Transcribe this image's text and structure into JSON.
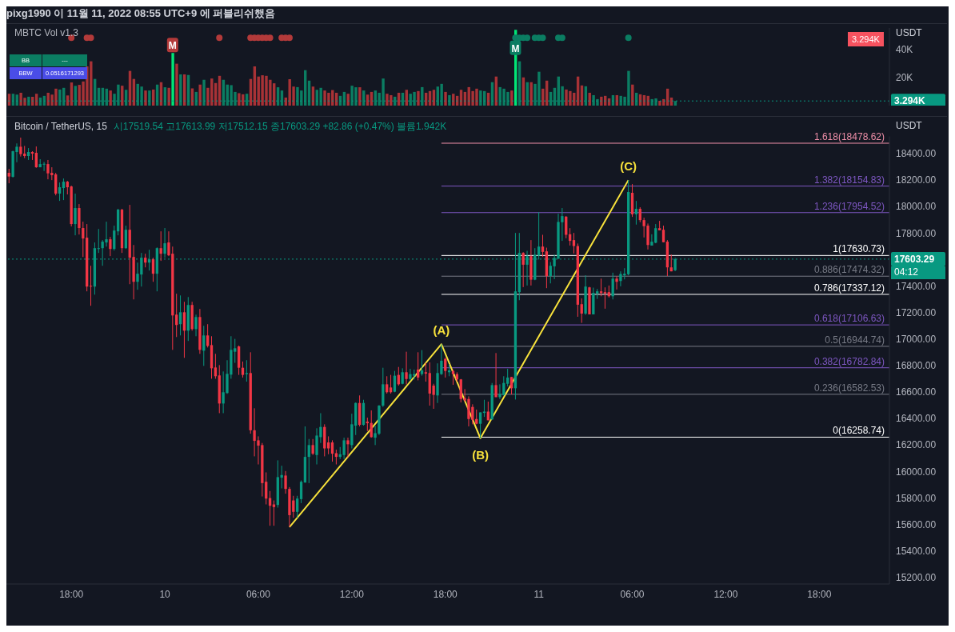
{
  "chart_data": [
    {
      "type": "bar",
      "title": "MBTC Vol v1.3",
      "ylabel": "USDT",
      "annotations": [
        "pixg1990 이 11월 11, 2022 08:55 UTC+9 에 퍼블리쉬했음",
        "BB",
        "---",
        "BBW",
        "0.0516171293",
        "3.294K",
        {
          "text": "M",
          "x": "2022-11-10T00:30",
          "y": 43
        },
        {
          "text": "M",
          "x": "2022-11-10T22:30",
          "y": 41
        }
      ],
      "x": [
        "2022-11-09T14:00",
        "2022-11-09T14:15",
        "2022-11-09T14:30",
        "2022-11-09T14:45",
        "2022-11-09T15:00",
        "2022-11-09T15:15",
        "2022-11-09T15:30",
        "2022-11-09T15:45",
        "2022-11-09T16:00",
        "2022-11-09T16:15",
        "2022-11-09T16:30",
        "2022-11-09T16:45",
        "2022-11-09T17:00",
        "2022-11-09T17:15",
        "2022-11-09T17:30",
        "2022-11-09T17:45",
        "2022-11-09T18:00",
        "2022-11-09T18:15",
        "2022-11-09T18:30",
        "2022-11-09T18:45",
        "2022-11-09T19:00",
        "2022-11-09T19:15",
        "2022-11-09T19:30",
        "2022-11-09T19:45",
        "2022-11-09T20:00",
        "2022-11-09T20:15",
        "2022-11-09T20:30",
        "2022-11-09T20:45",
        "2022-11-09T21:00",
        "2022-11-09T21:15",
        "2022-11-09T21:30",
        "2022-11-09T21:45",
        "2022-11-09T22:00",
        "2022-11-09T22:15",
        "2022-11-09T22:30",
        "2022-11-09T22:45",
        "2022-11-09T23:00",
        "2022-11-09T23:15",
        "2022-11-09T23:30",
        "2022-11-09T23:45",
        "2022-11-10T00:00",
        "2022-11-10T00:15",
        "2022-11-10T00:30",
        "2022-11-10T00:45",
        "2022-11-10T01:00",
        "2022-11-10T01:15",
        "2022-11-10T01:30",
        "2022-11-10T01:45",
        "2022-11-10T02:00",
        "2022-11-10T02:15",
        "2022-11-10T02:30",
        "2022-11-10T02:45",
        "2022-11-10T03:00",
        "2022-11-10T03:15",
        "2022-11-10T03:30",
        "2022-11-10T03:45",
        "2022-11-10T04:00",
        "2022-11-10T04:15",
        "2022-11-10T04:30",
        "2022-11-10T04:45",
        "2022-11-10T05:00",
        "2022-11-10T05:15",
        "2022-11-10T05:30",
        "2022-11-10T05:45",
        "2022-11-10T06:00",
        "2022-11-10T06:15",
        "2022-11-10T06:30",
        "2022-11-10T06:45",
        "2022-11-10T07:00",
        "2022-11-10T07:15",
        "2022-11-10T07:30",
        "2022-11-10T07:45",
        "2022-11-10T08:00",
        "2022-11-10T08:15",
        "2022-11-10T08:30",
        "2022-11-10T08:45",
        "2022-11-10T09:00",
        "2022-11-10T09:15",
        "2022-11-10T09:30",
        "2022-11-10T09:45",
        "2022-11-10T10:00",
        "2022-11-10T10:15",
        "2022-11-10T10:30",
        "2022-11-10T10:45",
        "2022-11-10T11:00",
        "2022-11-10T11:15",
        "2022-11-10T11:30",
        "2022-11-10T11:45",
        "2022-11-10T12:00",
        "2022-11-10T12:15",
        "2022-11-10T12:30",
        "2022-11-10T12:45",
        "2022-11-10T13:00",
        "2022-11-10T13:15",
        "2022-11-10T13:30",
        "2022-11-10T13:45",
        "2022-11-10T14:00",
        "2022-11-10T14:15",
        "2022-11-10T14:30",
        "2022-11-10T14:45",
        "2022-11-10T15:00",
        "2022-11-10T15:15",
        "2022-11-10T15:30",
        "2022-11-10T15:45",
        "2022-11-10T16:00",
        "2022-11-10T16:15",
        "2022-11-10T16:30",
        "2022-11-10T16:45",
        "2022-11-10T17:00",
        "2022-11-10T17:15",
        "2022-11-10T17:30",
        "2022-11-10T17:45",
        "2022-11-10T18:00",
        "2022-11-10T18:15",
        "2022-11-10T18:30",
        "2022-11-10T18:45",
        "2022-11-10T19:00",
        "2022-11-10T19:15",
        "2022-11-10T19:30",
        "2022-11-10T19:45",
        "2022-11-10T20:00",
        "2022-11-10T20:15",
        "2022-11-10T20:30",
        "2022-11-10T20:45",
        "2022-11-10T21:00",
        "2022-11-10T21:15",
        "2022-11-10T21:30",
        "2022-11-10T21:45",
        "2022-11-10T22:00",
        "2022-11-10T22:15",
        "2022-11-10T22:30",
        "2022-11-10T22:45",
        "2022-11-10T23:00",
        "2022-11-10T23:15",
        "2022-11-10T23:30",
        "2022-11-10T23:45",
        "2022-11-11T00:00",
        "2022-11-11T00:15",
        "2022-11-11T00:30",
        "2022-11-11T00:45",
        "2022-11-11T01:00",
        "2022-11-11T01:15",
        "2022-11-11T01:30",
        "2022-11-11T01:45",
        "2022-11-11T02:00",
        "2022-11-11T02:15",
        "2022-11-11T02:30",
        "2022-11-11T02:45",
        "2022-11-11T03:00",
        "2022-11-11T03:15",
        "2022-11-11T03:30",
        "2022-11-11T03:45",
        "2022-11-11T04:00",
        "2022-11-11T04:15",
        "2022-11-11T04:30",
        "2022-11-11T04:45",
        "2022-11-11T05:00",
        "2022-11-11T05:15",
        "2022-11-11T05:30",
        "2022-11-11T05:45",
        "2022-11-11T06:00",
        "2022-11-11T06:15",
        "2022-11-11T06:30",
        "2022-11-11T06:45",
        "2022-11-11T07:00",
        "2022-11-11T07:15",
        "2022-11-11T07:30",
        "2022-11-11T07:45",
        "2022-11-11T08:00",
        "2022-11-11T08:15",
        "2022-11-11T08:30",
        "2022-11-11T08:45"
      ],
      "values": [
        8.4,
        8.4,
        7.8,
        9.1,
        5.5,
        6.3,
        6.3,
        8.4,
        5.7,
        6.9,
        9.1,
        7.8,
        12.0,
        11.4,
        12.6,
        7.2,
        16.4,
        14,
        14.7,
        17.1,
        27.8,
        31.4,
        18.9,
        12.6,
        12.6,
        12.0,
        10.7,
        8.4,
        14.9,
        14.1,
        11.2,
        24.6,
        18.9,
        15.4,
        13.5,
        10.7,
        10.7,
        11.4,
        14.9,
        16.6,
        13.0,
        12.6,
        37.3,
        29.7,
        22.1,
        22.1,
        21.7,
        12.2,
        9.7,
        14.9,
        18.3,
        12.6,
        19.2,
        16.0,
        21.1,
        18.3,
        14.9,
        14.5,
        9.7,
        8.8,
        8.0,
        8.4,
        18.9,
        27.8,
        20.6,
        21.5,
        21.1,
        18.3,
        15.8,
        13.0,
        10.7,
        5.7,
        18.7,
        13.5,
        13.1,
        10.7,
        25.1,
        17.7,
        13.5,
        11.2,
        12.6,
        10.7,
        9.1,
        11.0,
        9.1,
        6.9,
        9.7,
        8.4,
        14.1,
        13.0,
        13.0,
        10.7,
        7.8,
        9.7,
        10.7,
        9.1,
        19.2,
        8.4,
        7.4,
        6.3,
        9.1,
        9.1,
        11.2,
        8.4,
        9.7,
        10.3,
        13.1,
        9.1,
        10.3,
        11.2,
        13.5,
        15.4,
        9.7,
        7.4,
        8.4,
        6.9,
        11.2,
        9.7,
        13.1,
        10.3,
        12.0,
        10.7,
        10.3,
        9.1,
        16.6,
        20.6,
        13.1,
        12.0,
        9.7,
        10.7,
        53.7,
        31.4,
        20.0,
        16.6,
        16.6,
        15.4,
        24.0,
        12.0,
        17.7,
        9.7,
        12.6,
        20.6,
        13.7,
        11.4,
        10.3,
        9.1,
        20.6,
        14.3,
        13.7,
        9.1,
        7.4,
        4.6,
        6.3,
        6.9,
        5.1,
        7.4,
        7.4,
        6.9,
        6.3,
        24.6,
        14.9,
        9.1,
        8.0,
        7.4,
        6.9,
        4.6,
        5.1,
        3.4,
        4.6,
        12.0,
        5.7,
        3.294
      ],
      "colors": [
        "#a83236",
        "#0b7d62",
        "#0b7d62",
        "#a83236",
        "#a83236",
        "#0b7d62",
        "#a83236",
        "#a83236",
        "#0b7d62",
        "#0b7d62",
        "#a83236",
        "#a83236",
        "#a83236",
        "#0b7d62",
        "#0b7d62",
        "#a83236",
        "#a83236",
        "#0b7d62",
        "#a83236",
        "#a83236",
        "#a83236",
        "#a83236",
        "#0b7d62",
        "#0b7d62",
        "#0b7d62",
        "#0b7d62",
        "#a83236",
        "#0b7d62",
        "#0b7d62",
        "#a83236",
        "#0b7d62",
        "#a83236",
        "#a83236",
        "#0b7d62",
        "#0b7d62",
        "#a83236",
        "#0b7d62",
        "#a83236",
        "#0b7d62",
        "#a83236",
        "#0b7d62",
        "#a83236",
        "#00e676",
        "#a83236",
        "#0b7d62",
        "#a83236",
        "#0b7d62",
        "#a83236",
        "#0b7d62",
        "#a83236",
        "#0b7d62",
        "#a83236",
        "#a83236",
        "#a83236",
        "#a83236",
        "#0b7d62",
        "#0b7d62",
        "#0b7d62",
        "#0b7d62",
        "#a83236",
        "#a83236",
        "#0b7d62",
        "#a83236",
        "#a83236",
        "#a83236",
        "#a83236",
        "#a83236",
        "#a83236",
        "#a83236",
        "#0b7d62",
        "#0b7d62",
        "#a83236",
        "#a83236",
        "#a83236",
        "#0b7d62",
        "#0b7d62",
        "#0b7d62",
        "#0b7d62",
        "#a83236",
        "#0b7d62",
        "#0b7d62",
        "#a83236",
        "#a83236",
        "#a83236",
        "#a83236",
        "#0b7d62",
        "#0b7d62",
        "#a83236",
        "#0b7d62",
        "#0b7d62",
        "#a83236",
        "#0b7d62",
        "#a83236",
        "#a83236",
        "#0b7d62",
        "#0b7d62",
        "#0b7d62",
        "#a83236",
        "#a83236",
        "#0b7d62",
        "#a83236",
        "#0b7d62",
        "#a83236",
        "#0b7d62",
        "#0b7d62",
        "#a83236",
        "#0b7d62",
        "#a83236",
        "#a83236",
        "#a83236",
        "#0b7d62",
        "#0b7d62",
        "#a83236",
        "#0b7d62",
        "#a83236",
        "#a83236",
        "#a83236",
        "#a83236",
        "#a83236",
        "#a83236",
        "#a83236",
        "#0b7d62",
        "#0b7d62",
        "#a83236",
        "#0b7d62",
        "#a83236",
        "#0b7d62",
        "#0b7d62",
        "#0b7d62",
        "#a83236",
        "#00e676",
        "#0b7d62",
        "#a83236",
        "#0b7d62",
        "#a83236",
        "#0b7d62",
        "#0b7d62",
        "#a83236",
        "#a83236",
        "#0b7d62",
        "#0b7d62",
        "#0b7d62",
        "#0b7d62",
        "#a83236",
        "#a83236",
        "#a83236",
        "#a83236",
        "#a83236",
        "#0b7d62",
        "#a83236",
        "#0b7d62",
        "#0b7d62",
        "#a83236",
        "#a83236",
        "#a83236",
        "#0b7d62",
        "#a83236",
        "#0b7d62",
        "#0b7d62",
        "#0b7d62",
        "#a83236",
        "#0b7d62",
        "#a83236",
        "#a83236",
        "#a83236",
        "#0b7d62",
        "#0b7d62",
        "#a83236",
        "#a83236",
        "#a83236",
        "#a83236",
        "#0b7d62"
      ],
      "series": [
        {
          "type": "scatter",
          "color": "#b33a3a",
          "x": [
            "2022-11-09T18:00",
            "2022-11-09T19:00",
            "2022-11-09T19:15",
            "2022-11-10T03:30",
            "2022-11-10T05:30",
            "2022-11-10T05:45",
            "2022-11-10T06:00",
            "2022-11-10T06:15",
            "2022-11-10T06:30",
            "2022-11-10T06:45",
            "2022-11-10T07:30",
            "2022-11-10T07:45",
            "2022-11-10T08:00"
          ],
          "values": [
            48,
            48,
            48,
            48,
            48,
            48,
            48,
            48,
            48,
            48,
            48,
            48,
            48
          ]
        },
        {
          "type": "scatter",
          "color": "#0b7d62",
          "x": [
            "2022-11-10T22:30",
            "2022-11-10T22:45",
            "2022-11-10T23:00",
            "2022-11-10T23:15",
            "2022-11-10T23:45",
            "2022-11-11T00:00",
            "2022-11-11T00:15",
            "2022-11-11T01:15",
            "2022-11-11T01:30",
            "2022-11-11T05:45"
          ],
          "values": [
            48,
            48,
            48,
            48,
            48,
            48,
            48,
            48,
            48,
            48
          ]
        }
      ],
      "xlim": [
        "2022-11-09T13:50",
        "2022-11-11T22:30"
      ],
      "ylim": [
        0,
        55
      ],
      "yticks": [
        {
          "value": 20,
          "label": "20K"
        },
        {
          "value": 40,
          "label": "40K"
        }
      ],
      "ref_lines": [
        {
          "axis": "y",
          "value": 3.294,
          "label": "3.294K",
          "color": "#089981",
          "line_style": "dotted"
        }
      ],
      "tick_labels": "y"
    },
    {
      "type": "candlestick",
      "title": "Bitcoin / TetherUS, 15",
      "subtitle": "시17519.54 고17613.99 저17512.15 종17603.29 +82.86 (+0.47%) 볼륨1.942K",
      "ylabel": "USDT",
      "annotations": [
        {
          "text": "(A)",
          "x": "2022-11-10T17:45",
          "y": 16961
        },
        {
          "text": "(B)",
          "x": "2022-11-10T20:15",
          "y": 16251
        },
        {
          "text": "(C)",
          "x": "2022-11-11T05:45",
          "y": 18200
        },
        "04:12"
      ],
      "x": [
        "2022-11-09T14:00",
        "2022-11-09T14:15",
        "2022-11-09T14:30",
        "2022-11-09T14:45",
        "2022-11-09T15:00",
        "2022-11-09T15:15",
        "2022-11-09T15:30",
        "2022-11-09T15:45",
        "2022-11-09T16:00",
        "2022-11-09T16:15",
        "2022-11-09T16:30",
        "2022-11-09T16:45",
        "2022-11-09T17:00",
        "2022-11-09T17:15",
        "2022-11-09T17:30",
        "2022-11-09T17:45",
        "2022-11-09T18:00",
        "2022-11-09T18:15",
        "2022-11-09T18:30",
        "2022-11-09T18:45",
        "2022-11-09T19:00",
        "2022-11-09T19:15",
        "2022-11-09T19:30",
        "2022-11-09T19:45",
        "2022-11-09T20:00",
        "2022-11-09T20:15",
        "2022-11-09T20:30",
        "2022-11-09T20:45",
        "2022-11-09T21:00",
        "2022-11-09T21:15",
        "2022-11-09T21:30",
        "2022-11-09T21:45",
        "2022-11-09T22:00",
        "2022-11-09T22:15",
        "2022-11-09T22:30",
        "2022-11-09T22:45",
        "2022-11-09T23:00",
        "2022-11-09T23:15",
        "2022-11-09T23:30",
        "2022-11-09T23:45",
        "2022-11-10T00:00",
        "2022-11-10T00:15",
        "2022-11-10T00:30",
        "2022-11-10T00:45",
        "2022-11-10T01:00",
        "2022-11-10T01:15",
        "2022-11-10T01:30",
        "2022-11-10T01:45",
        "2022-11-10T02:00",
        "2022-11-10T02:15",
        "2022-11-10T02:30",
        "2022-11-10T02:45",
        "2022-11-10T03:00",
        "2022-11-10T03:15",
        "2022-11-10T03:30",
        "2022-11-10T03:45",
        "2022-11-10T04:00",
        "2022-11-10T04:15",
        "2022-11-10T04:30",
        "2022-11-10T04:45",
        "2022-11-10T05:00",
        "2022-11-10T05:15",
        "2022-11-10T05:30",
        "2022-11-10T05:45",
        "2022-11-10T06:00",
        "2022-11-10T06:15",
        "2022-11-10T06:30",
        "2022-11-10T06:45",
        "2022-11-10T07:00",
        "2022-11-10T07:15",
        "2022-11-10T07:30",
        "2022-11-10T07:45",
        "2022-11-10T08:00",
        "2022-11-10T08:15",
        "2022-11-10T08:30",
        "2022-11-10T08:45",
        "2022-11-10T09:00",
        "2022-11-10T09:15",
        "2022-11-10T09:30",
        "2022-11-10T09:45",
        "2022-11-10T10:00",
        "2022-11-10T10:15",
        "2022-11-10T10:30",
        "2022-11-10T10:45",
        "2022-11-10T11:00",
        "2022-11-10T11:15",
        "2022-11-10T11:30",
        "2022-11-10T11:45",
        "2022-11-10T12:00",
        "2022-11-10T12:15",
        "2022-11-10T12:30",
        "2022-11-10T12:45",
        "2022-11-10T13:00",
        "2022-11-10T13:15",
        "2022-11-10T13:30",
        "2022-11-10T13:45",
        "2022-11-10T14:00",
        "2022-11-10T14:15",
        "2022-11-10T14:30",
        "2022-11-10T14:45",
        "2022-11-10T15:00",
        "2022-11-10T15:15",
        "2022-11-10T15:30",
        "2022-11-10T15:45",
        "2022-11-10T16:00",
        "2022-11-10T16:15",
        "2022-11-10T16:30",
        "2022-11-10T16:45",
        "2022-11-10T17:00",
        "2022-11-10T17:15",
        "2022-11-10T17:30",
        "2022-11-10T17:45",
        "2022-11-10T18:00",
        "2022-11-10T18:15",
        "2022-11-10T18:30",
        "2022-11-10T18:45",
        "2022-11-10T19:00",
        "2022-11-10T19:15",
        "2022-11-10T19:30",
        "2022-11-10T19:45",
        "2022-11-10T20:00",
        "2022-11-10T20:15",
        "2022-11-10T20:30",
        "2022-11-10T20:45",
        "2022-11-10T21:00",
        "2022-11-10T21:15",
        "2022-11-10T21:30",
        "2022-11-10T21:45",
        "2022-11-10T22:00",
        "2022-11-10T22:15",
        "2022-11-10T22:30",
        "2022-11-10T22:45",
        "2022-11-10T23:00",
        "2022-11-10T23:15",
        "2022-11-10T23:30",
        "2022-11-10T23:45",
        "2022-11-11T00:00",
        "2022-11-11T00:15",
        "2022-11-11T00:30",
        "2022-11-11T00:45",
        "2022-11-11T01:00",
        "2022-11-11T01:15",
        "2022-11-11T01:30",
        "2022-11-11T01:45",
        "2022-11-11T02:00",
        "2022-11-11T02:15",
        "2022-11-11T02:30",
        "2022-11-11T02:45",
        "2022-11-11T03:00",
        "2022-11-11T03:15",
        "2022-11-11T03:30",
        "2022-11-11T03:45",
        "2022-11-11T04:00",
        "2022-11-11T04:15",
        "2022-11-11T04:30",
        "2022-11-11T04:45",
        "2022-11-11T05:00",
        "2022-11-11T05:15",
        "2022-11-11T05:30",
        "2022-11-11T05:45",
        "2022-11-11T06:00",
        "2022-11-11T06:15",
        "2022-11-11T06:30",
        "2022-11-11T06:45",
        "2022-11-11T07:00",
        "2022-11-11T07:15",
        "2022-11-11T07:30",
        "2022-11-11T07:45",
        "2022-11-11T08:00",
        "2022-11-11T08:15",
        "2022-11-11T08:30",
        "2022-11-11T08:45"
      ],
      "ohlc": [
        [
          18255,
          18285,
          18176,
          18227
        ],
        [
          18225,
          18422,
          18219,
          18418
        ],
        [
          18412,
          18477,
          18335,
          18452
        ],
        [
          18452,
          18521,
          18378,
          18396
        ],
        [
          18400,
          18458,
          18366,
          18382
        ],
        [
          18382,
          18442,
          18352,
          18412
        ],
        [
          18412,
          18418,
          18352,
          18400
        ],
        [
          18406,
          18454,
          18293,
          18297
        ],
        [
          18297,
          18358,
          18297,
          18321
        ],
        [
          18317,
          18337,
          18269,
          18323
        ],
        [
          18321,
          18352,
          18206,
          18251
        ],
        [
          18255,
          18297,
          18200,
          18237
        ],
        [
          18243,
          18255,
          18085,
          18098
        ],
        [
          18098,
          18182,
          18043,
          18146
        ],
        [
          18140,
          18212,
          18049,
          18188
        ],
        [
          18188,
          18194,
          18092,
          18146
        ],
        [
          18152,
          18158,
          17850,
          17868
        ],
        [
          17868,
          18098,
          17783,
          17989
        ],
        [
          17989,
          18019,
          17789,
          17838
        ],
        [
          17838,
          17886,
          17620,
          17759
        ],
        [
          17765,
          17868,
          17360,
          17396
        ],
        [
          17402,
          17553,
          17251,
          17398
        ],
        [
          17396,
          17729,
          17335,
          17686
        ],
        [
          17680,
          17831,
          17650,
          17686
        ],
        [
          17686,
          17747,
          17553,
          17735
        ],
        [
          17729,
          17886,
          17698,
          17753
        ],
        [
          17753,
          17771,
          17626,
          17680
        ],
        [
          17680,
          17856,
          17668,
          17819
        ],
        [
          17813,
          17983,
          17783,
          17977
        ],
        [
          17977,
          17983,
          17650,
          17686
        ],
        [
          17686,
          17856,
          17680,
          17825
        ],
        [
          17825,
          18013,
          17414,
          17614
        ],
        [
          17620,
          17710,
          17299,
          17432
        ],
        [
          17432,
          17577,
          17372,
          17493
        ],
        [
          17487,
          17650,
          17396,
          17614
        ],
        [
          17614,
          17644,
          17541,
          17577
        ],
        [
          17577,
          17674,
          17517,
          17602
        ],
        [
          17602,
          17614,
          17432,
          17493
        ],
        [
          17493,
          17692,
          17360,
          17686
        ],
        [
          17686,
          17813,
          17590,
          17644
        ],
        [
          17644,
          17838,
          17614,
          17723
        ],
        [
          17729,
          17813,
          17626,
          17632
        ],
        [
          17644,
          17698,
          16918,
          17178
        ],
        [
          17184,
          17342,
          17015,
          17106
        ],
        [
          17112,
          17329,
          17027,
          17202
        ],
        [
          17202,
          17281,
          16858,
          17063
        ],
        [
          17063,
          17317,
          16985,
          17257
        ],
        [
          17257,
          17281,
          17063,
          17075
        ],
        [
          17075,
          17184,
          17021,
          17166
        ],
        [
          17166,
          17227,
          16888,
          16918
        ],
        [
          16912,
          17100,
          16797,
          17027
        ],
        [
          17027,
          17112,
          16936,
          16948
        ],
        [
          16954,
          17021,
          16700,
          16779
        ],
        [
          16785,
          16888,
          16700,
          16719
        ],
        [
          16725,
          16803,
          16440,
          16513
        ],
        [
          16513,
          16755,
          16440,
          16598
        ],
        [
          16592,
          16840,
          16586,
          16737
        ],
        [
          16731,
          17021,
          16700,
          16918
        ],
        [
          16904,
          17001,
          16820,
          16930
        ],
        [
          16944,
          16951,
          16729,
          16783
        ],
        [
          16783,
          16830,
          16709,
          16729
        ],
        [
          16735,
          16840,
          16678,
          16743
        ],
        [
          16743,
          16900,
          16285,
          16311
        ],
        [
          16311,
          16477,
          16114,
          16231
        ],
        [
          16235,
          16265,
          16053,
          16195
        ],
        [
          16199,
          16215,
          15811,
          15912
        ],
        [
          15922,
          15993,
          15751,
          15795
        ],
        [
          15799,
          15852,
          15590,
          15741
        ],
        [
          15751,
          15781,
          15590,
          15731
        ],
        [
          15747,
          16084,
          15727,
          15957
        ],
        [
          15953,
          16043,
          15872,
          15973
        ],
        [
          15969,
          16003,
          15832,
          15868
        ],
        [
          15868,
          15882,
          15580,
          15670
        ],
        [
          15781,
          15816,
          15650,
          15695
        ],
        [
          15695,
          15816,
          15650,
          15795
        ],
        [
          15791,
          15932,
          15761,
          15922
        ],
        [
          15916,
          16340,
          15916,
          16110
        ],
        [
          16110,
          16245,
          15912,
          16199
        ],
        [
          16199,
          16245,
          16124,
          16134
        ],
        [
          16124,
          16326,
          16053,
          16271
        ],
        [
          16259,
          16440,
          16215,
          16336
        ],
        [
          16336,
          16356,
          16114,
          16174
        ],
        [
          16219,
          16265,
          16130,
          16174
        ],
        [
          16219,
          16235,
          16074,
          16134
        ],
        [
          16138,
          16164,
          16053,
          16110
        ],
        [
          16110,
          16184,
          16094,
          16130
        ],
        [
          16124,
          16255,
          16094,
          16235
        ],
        [
          16235,
          16255,
          16104,
          16205
        ],
        [
          16199,
          16436,
          16174,
          16356
        ],
        [
          16346,
          16521,
          16275,
          16517
        ],
        [
          16517,
          16574,
          16340,
          16352
        ],
        [
          16352,
          16541,
          16346,
          16517
        ],
        [
          16376,
          16406,
          16305,
          16364
        ],
        [
          16366,
          16461,
          16255,
          16259
        ],
        [
          16255,
          16346,
          16199,
          16289
        ],
        [
          16285,
          16501,
          16275,
          16497
        ],
        [
          16497,
          16783,
          16487,
          16658
        ],
        [
          16658,
          16719,
          16588,
          16598
        ],
        [
          16634,
          16729,
          16588,
          16598
        ],
        [
          16602,
          16759,
          16598,
          16723
        ],
        [
          16729,
          16789,
          16648,
          16658
        ],
        [
          16662,
          16779,
          16658,
          16749
        ],
        [
          16749,
          16904,
          16658,
          16698
        ],
        [
          16698,
          16775,
          16688,
          16735
        ],
        [
          16723,
          16769,
          16694,
          16735
        ],
        [
          16769,
          16900,
          16688,
          16709
        ],
        [
          16735,
          16916,
          16723,
          16763
        ],
        [
          16749,
          16820,
          16678,
          16739
        ],
        [
          16743,
          16824,
          16497,
          16588
        ],
        [
          16648,
          16662,
          16473,
          16578
        ],
        [
          16574,
          16816,
          16517,
          16743
        ],
        [
          16735,
          16961,
          16729,
          16836
        ],
        [
          16850,
          16860,
          16709,
          16759
        ],
        [
          16749,
          16810,
          16719,
          16763
        ],
        [
          16759,
          16769,
          16654,
          16735
        ],
        [
          16735,
          16749,
          16678,
          16695
        ],
        [
          16695,
          16698,
          16521,
          16547
        ],
        [
          16553,
          16622,
          16527,
          16537
        ],
        [
          16547,
          16567,
          16340,
          16396
        ],
        [
          16487,
          16507,
          16356,
          16390
        ],
        [
          16396,
          16467,
          16356,
          16360
        ],
        [
          16360,
          16446,
          16251,
          16446
        ],
        [
          16442,
          16541,
          16412,
          16452
        ],
        [
          16452,
          16527,
          16386,
          16386
        ],
        [
          16392,
          16668,
          16392,
          16652
        ],
        [
          16652,
          16894,
          16561,
          16561
        ],
        [
          16561,
          16658,
          16547,
          16585
        ],
        [
          16577,
          16719,
          16573,
          16668
        ],
        [
          16662,
          16775,
          16642,
          16709
        ],
        [
          16713,
          16713,
          16581,
          16628
        ],
        [
          16628,
          17801,
          16543,
          17360
        ],
        [
          17354,
          17801,
          17293,
          17650
        ],
        [
          17650,
          17656,
          17392,
          17561
        ],
        [
          17561,
          17666,
          17404,
          17626
        ],
        [
          17626,
          17747,
          17404,
          17448
        ],
        [
          17448,
          17686,
          17444,
          17636
        ],
        [
          17630,
          17958,
          17600,
          17698
        ],
        [
          17698,
          17787,
          17622,
          17658
        ],
        [
          17662,
          17690,
          17384,
          17475
        ],
        [
          17475,
          17581,
          17420,
          17553
        ],
        [
          17549,
          17636,
          17452,
          17612
        ],
        [
          17606,
          17946,
          17606,
          17884
        ],
        [
          17882,
          17989,
          17741,
          17928
        ],
        [
          17924,
          17928,
          17761,
          17787
        ],
        [
          17791,
          17837,
          17706,
          17741
        ],
        [
          17747,
          17801,
          17646,
          17702
        ],
        [
          17702,
          17721,
          17168,
          17259
        ],
        [
          17263,
          17307,
          17122,
          17192
        ],
        [
          17192,
          17481,
          17182,
          17396
        ],
        [
          17390,
          17394,
          17186,
          17186
        ],
        [
          17186,
          17388,
          17186,
          17348
        ],
        [
          17344,
          17378,
          17303,
          17360
        ],
        [
          17360,
          17456,
          17323,
          17348
        ],
        [
          17354,
          17390,
          17229,
          17344
        ],
        [
          17354,
          17404,
          17313,
          17323
        ],
        [
          17323,
          17501,
          17299,
          17456
        ],
        [
          17456,
          17475,
          17374,
          17432
        ],
        [
          17438,
          17511,
          17398,
          17491
        ],
        [
          17481,
          17535,
          17450,
          17493
        ],
        [
          17489,
          18200,
          17481,
          18110
        ],
        [
          18104,
          18170,
          17922,
          17942
        ],
        [
          17942,
          18043,
          17864,
          17983
        ],
        [
          17983,
          17995,
          17882,
          17898
        ],
        [
          17898,
          17916,
          17767,
          17852
        ],
        [
          17856,
          17872,
          17676,
          17710
        ],
        [
          17706,
          17791,
          17706,
          17735
        ],
        [
          17727,
          17868,
          17723,
          17837
        ],
        [
          17837,
          17892,
          17821,
          17821
        ],
        [
          17825,
          17856,
          17731,
          17731
        ],
        [
          17735,
          17747,
          17475,
          17541
        ],
        [
          17541,
          17638,
          17511,
          17511
        ],
        [
          17519.54,
          17613.99,
          17512.15,
          17603.29
        ]
      ],
      "series": [
        {
          "type": "line",
          "color": "#f7e13b",
          "x": [
            "2022-11-10T08:00",
            "2022-11-10T17:45",
            "2022-11-10T20:15",
            "2022-11-11T05:45"
          ],
          "values": [
            15580,
            16961,
            16251,
            18200
          ]
        }
      ],
      "xlim": [
        "2022-11-09T13:50",
        "2022-11-11T22:30"
      ],
      "xticks": [
        {
          "value": "2022-11-09T18:00",
          "label": "18:00"
        },
        {
          "value": "2022-11-10T00:00",
          "label": "10"
        },
        {
          "value": "2022-11-10T06:00",
          "label": "06:00"
        },
        {
          "value": "2022-11-10T12:00",
          "label": "12:00"
        },
        {
          "value": "2022-11-10T18:00",
          "label": "18:00"
        },
        {
          "value": "2022-11-11T00:00",
          "label": "11"
        },
        {
          "value": "2022-11-11T06:00",
          "label": "06:00"
        },
        {
          "value": "2022-11-11T12:00",
          "label": "12:00"
        },
        {
          "value": "2022-11-11T18:00",
          "label": "18:00"
        }
      ],
      "ylim": [
        15150,
        18530
      ],
      "yticks": [
        {
          "value": 15200,
          "label": "15200.00"
        },
        {
          "value": 15400,
          "label": "15400.00"
        },
        {
          "value": 15600,
          "label": "15600.00"
        },
        {
          "value": 15800,
          "label": "15800.00"
        },
        {
          "value": 16000,
          "label": "16000.00"
        },
        {
          "value": 16200,
          "label": "16200.00"
        },
        {
          "value": 16400,
          "label": "16400.00"
        },
        {
          "value": 16600,
          "label": "16600.00"
        },
        {
          "value": 16800,
          "label": "16800.00"
        },
        {
          "value": 17000,
          "label": "17000.00"
        },
        {
          "value": 17200,
          "label": "17200.00"
        },
        {
          "value": 17400,
          "label": "17400.00"
        },
        {
          "value": 17800,
          "label": "17800.00"
        },
        {
          "value": 18000,
          "label": "18000.00"
        },
        {
          "value": 18200,
          "label": "18200.00"
        },
        {
          "value": 18400,
          "label": "18400.00"
        }
      ],
      "ref_lines": [
        {
          "axis": "y",
          "value": 18478.62,
          "label": "1.618(18478.62)",
          "color": "#ef8fa8"
        },
        {
          "axis": "y",
          "value": 18154.83,
          "label": "1.382(18154.83)",
          "color": "#7e57c2"
        },
        {
          "axis": "y",
          "value": 17954.52,
          "label": "1.236(17954.52)",
          "color": "#7e57c2"
        },
        {
          "axis": "y",
          "value": 17630.73,
          "label": "1(17630.73)",
          "color": "#ffffff"
        },
        {
          "axis": "y",
          "value": 17474.32,
          "label": "0.886(17474.32)",
          "color": "#787b86"
        },
        {
          "axis": "y",
          "value": 17337.12,
          "label": "0.786(17337.12)",
          "color": "#ffffff"
        },
        {
          "axis": "y",
          "value": 17106.63,
          "label": "0.618(17106.63)",
          "color": "#7e57c2"
        },
        {
          "axis": "y",
          "value": 16944.74,
          "label": "0.5(16944.74)",
          "color": "#787b86"
        },
        {
          "axis": "y",
          "value": 16782.84,
          "label": "0.382(16782.84)",
          "color": "#7e57c2"
        },
        {
          "axis": "y",
          "value": 16582.53,
          "label": "0.236(16582.53)",
          "color": "#787b86"
        },
        {
          "axis": "y",
          "value": 16258.74,
          "label": "0(16258.74)",
          "color": "#ffffff"
        },
        {
          "axis": "y",
          "value": 17603.29,
          "label": "17603.29",
          "color": "#089981",
          "line_style": "dotted"
        }
      ]
    }
  ]
}
